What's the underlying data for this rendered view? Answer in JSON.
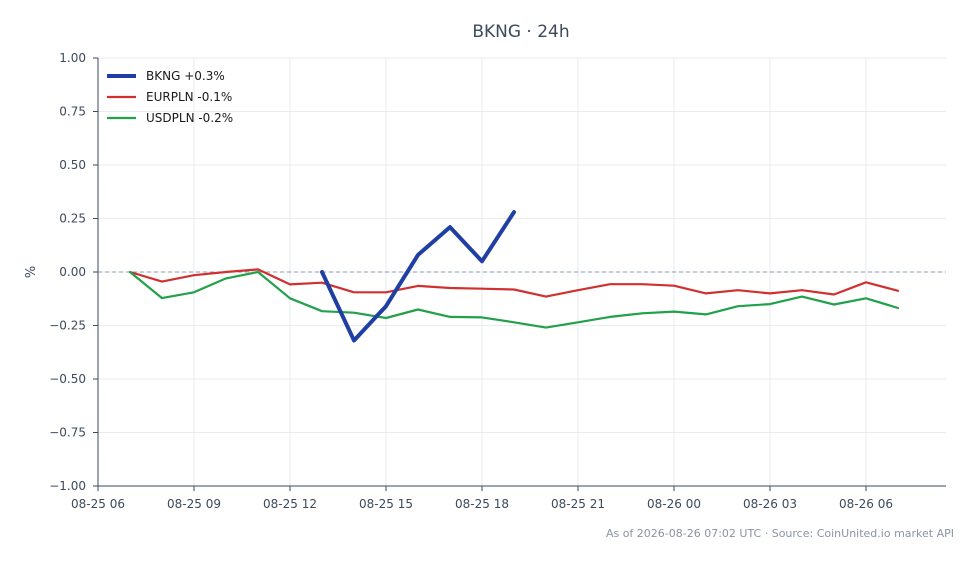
{
  "chart_data": {
    "type": "line",
    "title": "BKNG · 24h",
    "ylabel": "%",
    "ylim": [
      -1.0,
      1.0
    ],
    "yticks": [
      "1.00",
      "0.75",
      "0.50",
      "0.25",
      "0.00",
      "−0.25",
      "−0.50",
      "−0.75",
      "−1.00"
    ],
    "ytick_values": [
      1.0,
      0.75,
      0.5,
      0.25,
      0.0,
      -0.25,
      -0.5,
      -0.75,
      -1.0
    ],
    "xlim_hours": [
      6.0,
      32.5
    ],
    "xtick_labels": [
      "08-25 06",
      "08-25 09",
      "08-25 12",
      "08-25 15",
      "08-25 18",
      "08-25 21",
      "08-26 00",
      "08-26 03",
      "08-26 06"
    ],
    "xtick_hours": [
      6,
      9,
      12,
      15,
      18,
      21,
      24,
      27,
      30
    ],
    "zero_line": true,
    "grid": true,
    "legend_position": "top-left",
    "series": [
      {
        "name": "BKNG +0.3%",
        "color": "#1f3fa3",
        "emphasis": true,
        "x_hours": [
          13,
          14,
          15,
          16,
          17,
          18,
          19
        ],
        "values": [
          0.0,
          -0.32,
          -0.16,
          0.08,
          0.21,
          0.05,
          0.28
        ]
      },
      {
        "name": "EURPLN -0.1%",
        "color": "#d03030",
        "emphasis": false,
        "x_hours": [
          7,
          8,
          9,
          10,
          11,
          12,
          13,
          14,
          15,
          16,
          17,
          18,
          19,
          20,
          21,
          22,
          23,
          24,
          25,
          26,
          27,
          28,
          29,
          30,
          31
        ],
        "values": [
          0.0,
          -0.045,
          -0.015,
          0.0,
          0.012,
          -0.058,
          -0.05,
          -0.095,
          -0.095,
          -0.065,
          -0.075,
          -0.078,
          -0.082,
          -0.115,
          -0.085,
          -0.057,
          -0.057,
          -0.064,
          -0.1,
          -0.085,
          -0.1,
          -0.085,
          -0.105,
          -0.048,
          -0.088
        ]
      },
      {
        "name": "USDPLN -0.2%",
        "color": "#22a04a",
        "emphasis": false,
        "x_hours": [
          7,
          8,
          9,
          10,
          11,
          12,
          13,
          14,
          15,
          16,
          17,
          18,
          19,
          20,
          21,
          22,
          23,
          24,
          25,
          26,
          27,
          28,
          29,
          30,
          31
        ],
        "values": [
          0.0,
          -0.122,
          -0.095,
          -0.03,
          0.0,
          -0.123,
          -0.183,
          -0.19,
          -0.215,
          -0.175,
          -0.21,
          -0.212,
          -0.235,
          -0.26,
          -0.235,
          -0.21,
          -0.193,
          -0.185,
          -0.198,
          -0.16,
          -0.15,
          -0.115,
          -0.152,
          -0.123,
          -0.168
        ]
      }
    ]
  },
  "footer": {
    "text": "As of 2026-08-26 07:02 UTC · Source: CoinUnited.io market API"
  }
}
